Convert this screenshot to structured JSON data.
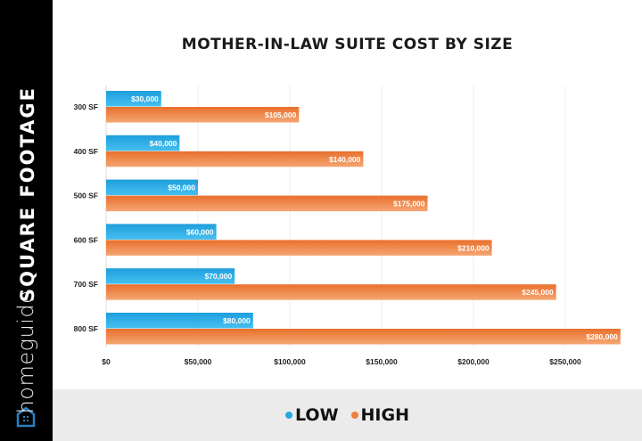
{
  "brand": "homeguide",
  "chart_data": {
    "type": "bar",
    "orientation": "horizontal",
    "title": "MOTHER-IN-LAW SUITE COST BY SIZE",
    "ylabel": "SQUARE FOOTAGE",
    "xlabel": "",
    "categories": [
      "300 SF",
      "400 SF",
      "500 SF",
      "600 SF",
      "700 SF",
      "800 SF"
    ],
    "series": [
      {
        "name": "LOW",
        "color": "#29a9e1",
        "values": [
          30000,
          40000,
          50000,
          60000,
          70000,
          80000
        ],
        "labels": [
          "$30,000",
          "$40,000",
          "$50,000",
          "$60,000",
          "$70,000",
          "$80,000"
        ]
      },
      {
        "name": "HIGH",
        "color": "#ee7f3c",
        "values": [
          105000,
          140000,
          175000,
          210000,
          245000,
          280000
        ],
        "labels": [
          "$105,000",
          "$140,000",
          "$175,000",
          "$210,000",
          "$245,000",
          "$280,000"
        ]
      }
    ],
    "xticks": [
      0,
      50000,
      100000,
      150000,
      200000,
      250000
    ],
    "xtick_labels": [
      "$0",
      "$50,000",
      "$100,000",
      "$150,000",
      "$200,000",
      "$250,000"
    ],
    "xlim": [
      0,
      280000
    ],
    "grid": true,
    "legend_position": "bottom"
  }
}
